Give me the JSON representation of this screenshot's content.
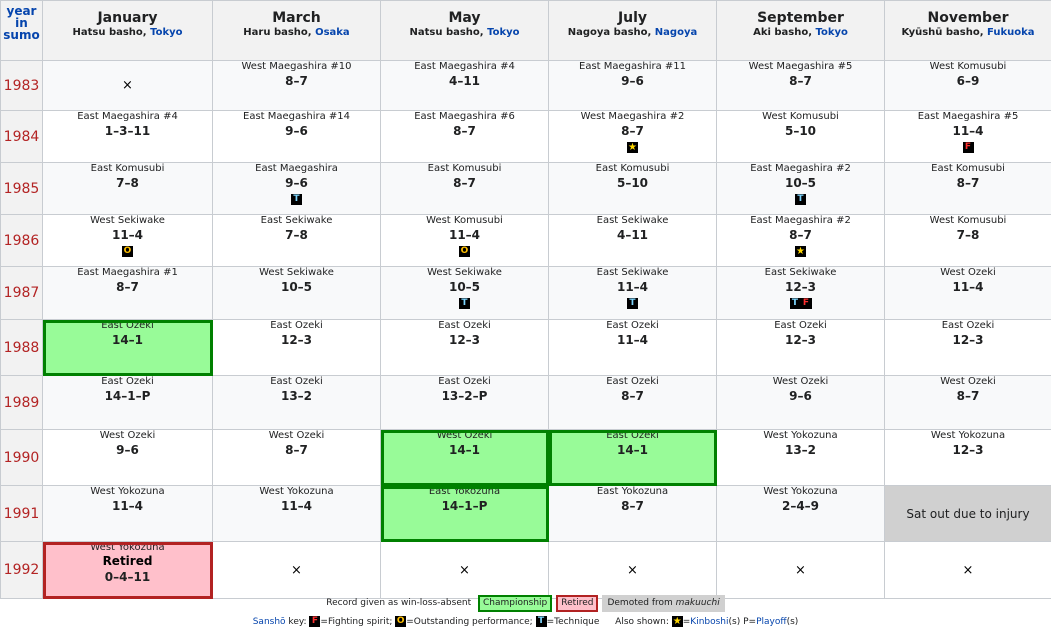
{
  "header": {
    "year_label": [
      "year",
      "in",
      "sumo"
    ],
    "months": [
      {
        "name": "January",
        "basho": "Hatsu basho, ",
        "loc": "Tokyo"
      },
      {
        "name": "March",
        "basho": "Haru basho, ",
        "loc": "Osaka"
      },
      {
        "name": "May",
        "basho": "Natsu basho, ",
        "loc": "Tokyo"
      },
      {
        "name": "July",
        "basho": "Nagoya basho, ",
        "loc": "Nagoya"
      },
      {
        "name": "September",
        "basho": "Aki basho, ",
        "loc": "Tokyo"
      },
      {
        "name": "November",
        "basho": "Kyūshū basho, ",
        "loc": "Fukuoka"
      }
    ]
  },
  "rows": [
    {
      "year": "1983",
      "h": 50,
      "shade": true,
      "cells": [
        {
          "type": "x",
          "text": "×"
        },
        {
          "rank": "West Maegashira #10",
          "score": "8–7"
        },
        {
          "rank": "East Maegashira #4",
          "score": "4–11"
        },
        {
          "rank": "East Maegashira #11",
          "score": "9–6"
        },
        {
          "rank": "West Maegashira #5",
          "score": "8–7"
        },
        {
          "rank": "West Komusubi",
          "score": "6–9"
        }
      ]
    },
    {
      "year": "1984",
      "h": 52,
      "shade": false,
      "cells": [
        {
          "rank": "East Maegashira #4",
          "score": "1–3–11"
        },
        {
          "rank": "East Maegashira #14",
          "score": "9–6"
        },
        {
          "rank": "East Maegashira #6",
          "score": "8–7"
        },
        {
          "rank": "West Maegashira #2",
          "score": "8–7",
          "icons": [
            {
              "k": "star",
              "t": "★"
            }
          ]
        },
        {
          "rank": "West Komusubi",
          "score": "5–10"
        },
        {
          "rank": "East Maegashira #5",
          "score": "11–4",
          "icons": [
            {
              "k": "F",
              "t": "F"
            }
          ]
        }
      ]
    },
    {
      "year": "1985",
      "h": 52,
      "shade": true,
      "cells": [
        {
          "rank": "East Komusubi",
          "score": "7–8"
        },
        {
          "rank": "East Maegashira",
          "score": "9–6",
          "icons": [
            {
              "k": "T",
              "t": "T"
            }
          ]
        },
        {
          "rank": "East Komusubi",
          "score": "8–7"
        },
        {
          "rank": "East Komusubi",
          "score": "5–10"
        },
        {
          "rank": "East Maegashira #2",
          "score": "10–5",
          "icons": [
            {
              "k": "T",
              "t": "T"
            }
          ]
        },
        {
          "rank": "East Komusubi",
          "score": "8–7"
        }
      ]
    },
    {
      "year": "1986",
      "h": 52,
      "shade": false,
      "cells": [
        {
          "rank": "West Sekiwake",
          "score": "11–4",
          "icons": [
            {
              "k": "O",
              "t": "O"
            }
          ]
        },
        {
          "rank": "East Sekiwake",
          "score": "7–8"
        },
        {
          "rank": "West Komusubi",
          "score": "11–4",
          "icons": [
            {
              "k": "O",
              "t": "O"
            }
          ]
        },
        {
          "rank": "East Sekiwake",
          "score": "4–11"
        },
        {
          "rank": "East Maegashira #2",
          "score": "8–7",
          "icons": [
            {
              "k": "star",
              "t": "★"
            }
          ]
        },
        {
          "rank": "West Komusubi",
          "score": "7–8"
        }
      ]
    },
    {
      "year": "1987",
      "h": 53,
      "shade": true,
      "cells": [
        {
          "rank": "East Maegashira #1",
          "score": "8–7"
        },
        {
          "rank": "West Sekiwake",
          "score": "10–5"
        },
        {
          "rank": "West Sekiwake",
          "score": "10–5",
          "icons": [
            {
              "k": "T",
              "t": "T"
            }
          ]
        },
        {
          "rank": "East Sekiwake",
          "score": "11–4",
          "icons": [
            {
              "k": "T",
              "t": "T"
            }
          ]
        },
        {
          "rank": "East Sekiwake",
          "score": "12–3",
          "icons": [
            {
              "k": "T",
              "t": "T"
            },
            {
              "k": "F",
              "t": "F"
            }
          ]
        },
        {
          "rank": "West Ōzeki",
          "score": "11–4"
        }
      ]
    },
    {
      "year": "1988",
      "h": 56,
      "shade": false,
      "cells": [
        {
          "rank": "East Ōzeki",
          "score": "14–1",
          "type": "champ"
        },
        {
          "rank": "East Ōzeki",
          "score": "12–3"
        },
        {
          "rank": "East Ōzeki",
          "score": "12–3"
        },
        {
          "rank": "East Ōzeki",
          "score": "11–4"
        },
        {
          "rank": "East Ōzeki",
          "score": "12–3"
        },
        {
          "rank": "East Ōzeki",
          "score": "12–3"
        }
      ]
    },
    {
      "year": "1989",
      "h": 54,
      "shade": true,
      "cells": [
        {
          "rank": "East Ōzeki",
          "score": "14–1–P"
        },
        {
          "rank": "East Ōzeki",
          "score": "13–2"
        },
        {
          "rank": "East Ōzeki",
          "score": "13–2–P"
        },
        {
          "rank": "East Ōzeki",
          "score": "8–7"
        },
        {
          "rank": "West Ōzeki",
          "score": "9–6"
        },
        {
          "rank": "West Ōzeki",
          "score": "8–7"
        }
      ]
    },
    {
      "year": "1990",
      "h": 56,
      "shade": false,
      "cells": [
        {
          "rank": "West Ōzeki",
          "score": "9–6"
        },
        {
          "rank": "West Ōzeki",
          "score": "8–7"
        },
        {
          "rank": "West Ōzeki",
          "score": "14–1",
          "type": "champ"
        },
        {
          "rank": "East Ōzeki",
          "score": "14–1",
          "type": "champ"
        },
        {
          "rank": "West Yokozuna",
          "score": "13–2"
        },
        {
          "rank": "West Yokozuna",
          "score": "12–3"
        }
      ]
    },
    {
      "year": "1991",
      "h": 56,
      "shade": true,
      "cells": [
        {
          "rank": "West Yokozuna",
          "score": "11–4"
        },
        {
          "rank": "West Yokozuna",
          "score": "11–4"
        },
        {
          "rank": "East Yokozuna",
          "score": "14–1–P",
          "type": "champ"
        },
        {
          "rank": "East Yokozuna",
          "score": "8–7"
        },
        {
          "rank": "West Yokozuna",
          "score": "2–4–9"
        },
        {
          "type": "satout",
          "text": "Sat out due to injury"
        }
      ]
    },
    {
      "year": "1992",
      "h": 57,
      "shade": false,
      "cells": [
        {
          "rank": "West Yokozuna",
          "score": "0–4–11",
          "type": "retired",
          "ret": "Retired"
        },
        {
          "type": "x",
          "text": "×"
        },
        {
          "type": "x",
          "text": "×"
        },
        {
          "type": "x",
          "text": "×"
        },
        {
          "type": "x",
          "text": "×"
        },
        {
          "type": "x",
          "text": "×"
        }
      ]
    }
  ],
  "legend": {
    "record_note": "Record given as win-loss-absent",
    "championship": "Championship",
    "retired": "Retired",
    "demoted": "Demoted from ",
    "demoted_em": "makuuchi",
    "sansho_link": "Sanshō",
    "sansho_key": " key: ",
    "fighting": "=Fighting spirit; ",
    "outstanding": "=Outstanding performance; ",
    "technique": "=Technique",
    "also_shown": "Also shown: ",
    "kinboshi_eq": "=",
    "kinboshi": "Kinboshi",
    "kinboshi_suffix": "(s) P=",
    "playoff": "Playoff",
    "playoff_suffix": "(s)",
    "colors": {
      "champ_bg": "#98fb98",
      "champ_border": "#008000",
      "retired_bg": "#ffc0cb",
      "retired_border": "#b22222",
      "demoted_bg": "#d0d0d0"
    }
  }
}
